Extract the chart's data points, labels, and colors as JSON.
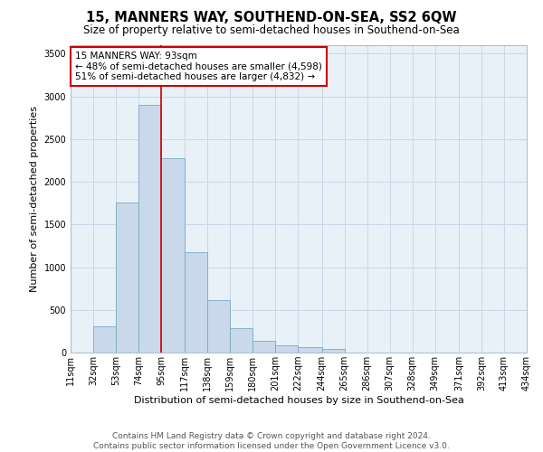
{
  "title": "15, MANNERS WAY, SOUTHEND-ON-SEA, SS2 6QW",
  "subtitle": "Size of property relative to semi-detached houses in Southend-on-Sea",
  "xlabel": "Distribution of semi-detached houses by size in Southend-on-Sea",
  "ylabel": "Number of semi-detached properties",
  "footer_line1": "Contains HM Land Registry data © Crown copyright and database right 2024.",
  "footer_line2": "Contains public sector information licensed under the Open Government Licence v3.0.",
  "annotation_line1": "15 MANNERS WAY: 93sqm",
  "annotation_line2": "← 48% of semi-detached houses are smaller (4,598)",
  "annotation_line3": "51% of semi-detached houses are larger (4,832) →",
  "bin_edges": [
    11,
    32,
    53,
    74,
    95,
    117,
    138,
    159,
    180,
    201,
    222,
    244,
    265,
    286,
    307,
    328,
    349,
    371,
    392,
    413,
    434
  ],
  "bin_labels": [
    "11sqm",
    "32sqm",
    "53sqm",
    "74sqm",
    "95sqm",
    "117sqm",
    "138sqm",
    "159sqm",
    "180sqm",
    "201sqm",
    "222sqm",
    "244sqm",
    "265sqm",
    "286sqm",
    "307sqm",
    "328sqm",
    "349sqm",
    "371sqm",
    "392sqm",
    "413sqm",
    "434sqm"
  ],
  "bar_heights": [
    5,
    310,
    1760,
    2900,
    2280,
    1180,
    610,
    290,
    140,
    90,
    60,
    45,
    5,
    0,
    0,
    0,
    0,
    0,
    0,
    0
  ],
  "bar_color": "#c9d9eb",
  "bar_edge_color": "#7aaabf",
  "vline_x": 95,
  "ylim": [
    0,
    3600
  ],
  "yticks": [
    0,
    500,
    1000,
    1500,
    2000,
    2500,
    3000,
    3500
  ],
  "grid_color": "#c8d8e8",
  "background_color": "#e8f0f8",
  "vline_color": "#cc0000",
  "annotation_box_color": "#ffffff",
  "annotation_box_edge_color": "#cc0000",
  "title_fontsize": 10.5,
  "subtitle_fontsize": 8.5,
  "axis_label_fontsize": 8,
  "tick_fontsize": 7,
  "annotation_fontsize": 7.5,
  "footer_fontsize": 6.5
}
